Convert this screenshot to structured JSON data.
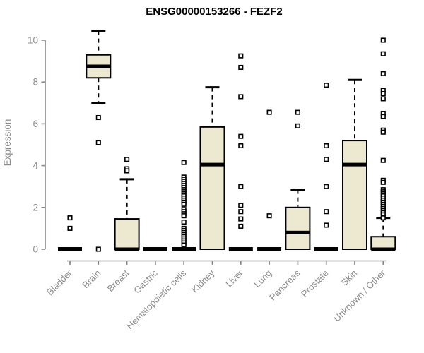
{
  "page": {
    "background": "#ffffff"
  },
  "chart_data": {
    "type": "box",
    "title": "ENSG00000153266 - FEZF2",
    "xlabel": "",
    "ylabel": "Expression",
    "ylim": [
      0,
      10
    ],
    "yticks": [
      0,
      2,
      4,
      6,
      8,
      10
    ],
    "grid": false,
    "legend": false,
    "categories": [
      "Bladder",
      "Brain",
      "Breast",
      "Gastric",
      "Hematopoietic cells",
      "Kidney",
      "Liver",
      "Lung",
      "Pancreas",
      "Prostate",
      "Skin",
      "Unknown / Other"
    ],
    "series": [
      {
        "label": "Bladder",
        "whisker_low": 0,
        "q1": 0,
        "median": 0,
        "q3": 0,
        "whisker_high": 0,
        "outliers": [
          1.5,
          1.0
        ]
      },
      {
        "label": "Brain",
        "whisker_low": 7.0,
        "q1": 8.2,
        "median": 8.75,
        "q3": 9.3,
        "whisker_high": 10.45,
        "outliers": [
          6.3,
          5.1,
          0.0
        ]
      },
      {
        "label": "Breast",
        "whisker_low": 0,
        "q1": 0,
        "median": 0,
        "q3": 1.45,
        "whisker_high": 3.35,
        "outliers": [
          4.3,
          3.85,
          3.75
        ]
      },
      {
        "label": "Gastric",
        "whisker_low": 0,
        "q1": 0,
        "median": 0,
        "q3": 0,
        "whisker_high": 0,
        "outliers": []
      },
      {
        "label": "Hematopoietic cells",
        "whisker_low": 0,
        "q1": 0,
        "median": 0,
        "q3": 0,
        "whisker_high": 0,
        "outliers": [
          4.15,
          3.45,
          3.35,
          3.25,
          3.15,
          3.05,
          2.95,
          2.85,
          2.75,
          2.65,
          2.55,
          2.45,
          2.35,
          2.25,
          2.15,
          1.9,
          1.8,
          1.7,
          1.6,
          1.3,
          1.0,
          0.9,
          0.8,
          0.7,
          0.6,
          0.5,
          0.4,
          0.3,
          0.2
        ]
      },
      {
        "label": "Kidney",
        "whisker_low": 0,
        "q1": 0,
        "median": 4.05,
        "q3": 5.85,
        "whisker_high": 7.75,
        "outliers": []
      },
      {
        "label": "Liver",
        "whisker_low": 0,
        "q1": 0,
        "median": 0,
        "q3": 0,
        "whisker_high": 0,
        "outliers": [
          9.25,
          8.7,
          7.3,
          5.4,
          4.95,
          3.0,
          2.1,
          1.8,
          1.45,
          1.1
        ]
      },
      {
        "label": "Lung",
        "whisker_low": 0,
        "q1": 0,
        "median": 0,
        "q3": 0,
        "whisker_high": 0,
        "outliers": [
          6.55,
          1.6
        ]
      },
      {
        "label": "Pancreas",
        "whisker_low": 0,
        "q1": 0,
        "median": 0.8,
        "q3": 2.0,
        "whisker_high": 2.85,
        "outliers": [
          6.55,
          5.9
        ]
      },
      {
        "label": "Prostate",
        "whisker_low": 0,
        "q1": 0,
        "median": 0,
        "q3": 0,
        "whisker_high": 0,
        "outliers": [
          7.85,
          4.95,
          4.3,
          3.0,
          1.8,
          1.15
        ]
      },
      {
        "label": "Skin",
        "whisker_low": 0,
        "q1": 0,
        "median": 4.05,
        "q3": 5.2,
        "whisker_high": 8.1,
        "outliers": []
      },
      {
        "label": "Unknown / Other",
        "whisker_low": 0,
        "q1": 0,
        "median": 0,
        "q3": 0.6,
        "whisker_high": 1.5,
        "outliers": [
          10.0,
          9.35,
          8.4,
          7.6,
          7.45,
          7.2,
          6.5,
          6.35,
          5.7,
          5.6,
          4.25,
          3.3,
          3.2,
          2.85,
          2.75,
          2.65,
          2.55,
          2.45,
          2.35,
          2.25,
          2.15,
          2.05,
          1.95,
          1.85,
          1.75,
          1.65,
          1.5
        ]
      }
    ],
    "colors": {
      "box_fill": "#EDE8D0",
      "box_stroke": "#000000",
      "median": "#000000",
      "outlier_stroke": "#000000",
      "outlier_fill": "#ffffff",
      "axis": "#898989",
      "tick_label": "#8D8D8D",
      "title": "#000000"
    }
  }
}
